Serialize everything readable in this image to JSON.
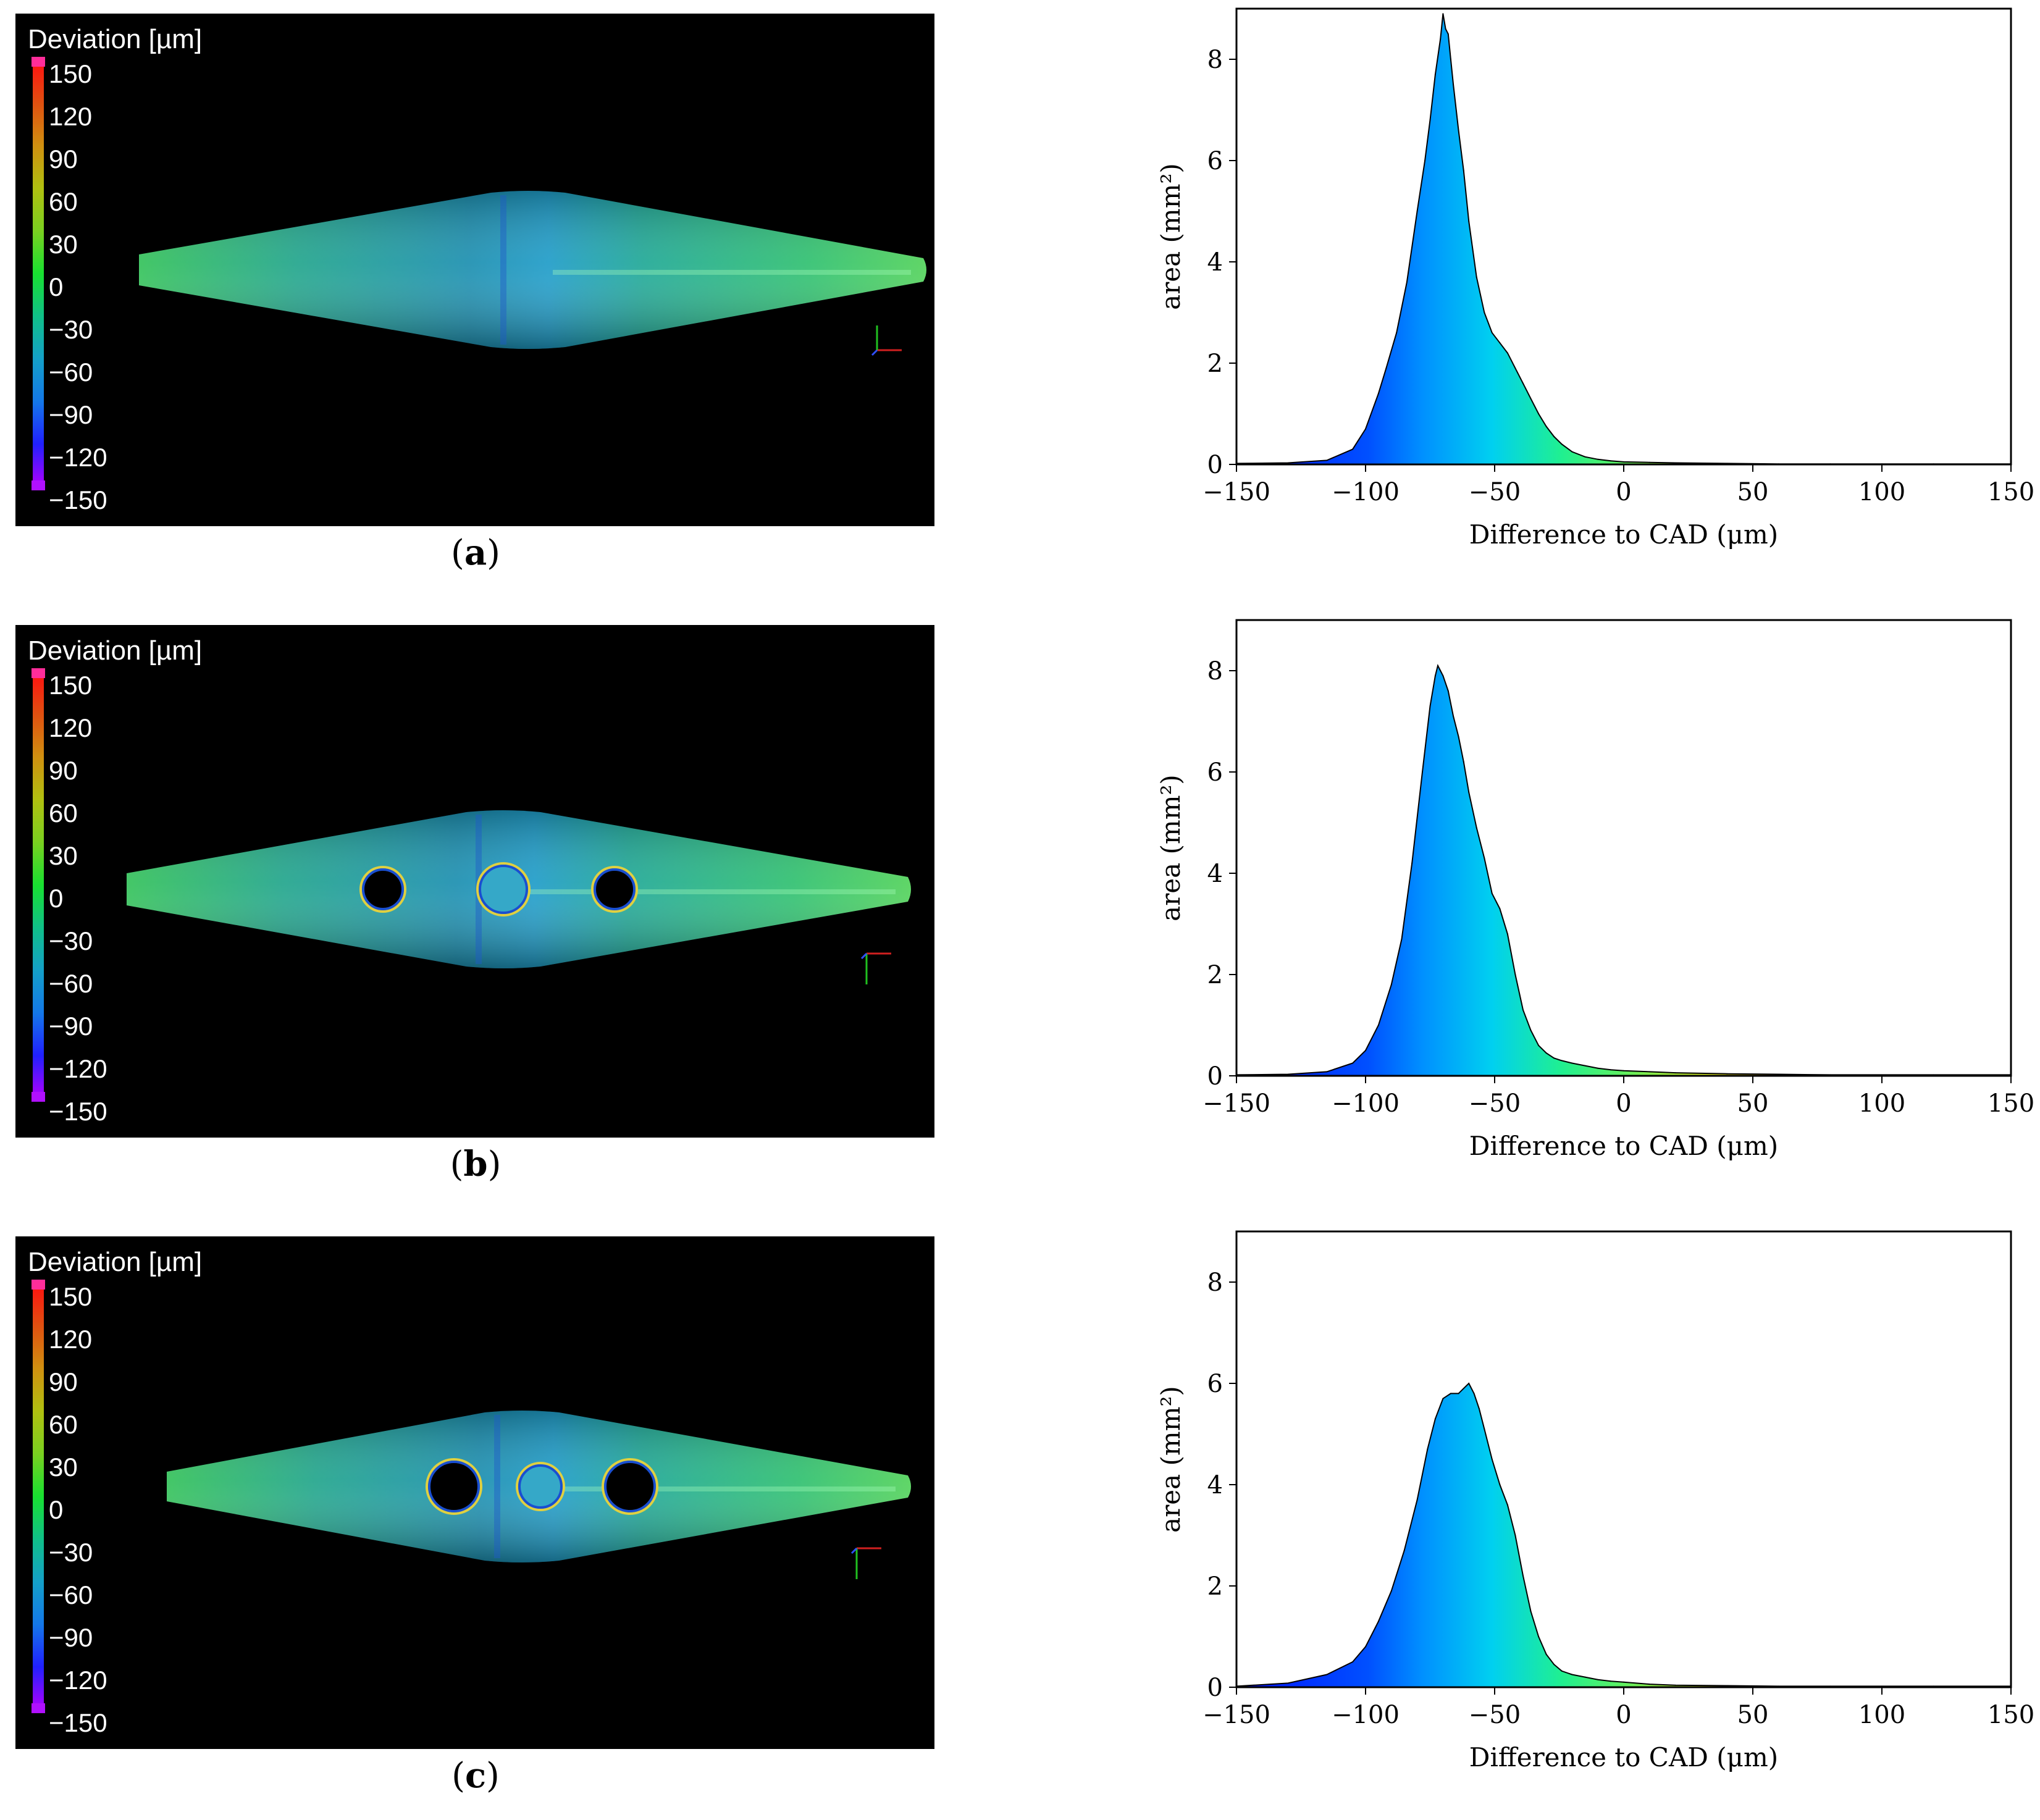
{
  "panels": [
    {
      "label": "a",
      "scan": {
        "legend_title": "Deviation [µm]",
        "legend_ticks": [
          "150",
          "120",
          "90",
          "60",
          "30",
          "0",
          "−30",
          "−60",
          "−90",
          "−120",
          "−150"
        ],
        "holes": 0
      },
      "chart_data": {
        "type": "area",
        "xlabel": "Difference to CAD (μm)",
        "ylabel": "area (mm²)",
        "xlim": [
          -150,
          150
        ],
        "ylim": [
          0,
          9
        ],
        "xticks": [
          "−150",
          "−100",
          "−50",
          "0",
          "50",
          "100",
          "150"
        ],
        "yticks": [
          "0",
          "2",
          "4",
          "6",
          "8"
        ],
        "x": [
          -150,
          -130,
          -115,
          -105,
          -100,
          -95,
          -92,
          -88,
          -84,
          -80,
          -77,
          -75,
          -73,
          -71,
          -70,
          -69,
          -68,
          -67,
          -66,
          -64,
          -62,
          -60,
          -57,
          -54,
          -51,
          -48,
          -45,
          -42,
          -39,
          -36,
          -33,
          -30,
          -27,
          -24,
          -20,
          -15,
          -10,
          -5,
          0,
          10,
          20,
          40,
          60,
          80,
          100,
          120,
          150
        ],
        "y": [
          0.02,
          0.03,
          0.08,
          0.3,
          0.7,
          1.4,
          1.9,
          2.6,
          3.6,
          5.0,
          6.0,
          6.8,
          7.7,
          8.4,
          8.9,
          8.6,
          8.5,
          8.0,
          7.5,
          6.6,
          5.8,
          4.8,
          3.7,
          3.0,
          2.6,
          2.4,
          2.2,
          1.9,
          1.6,
          1.3,
          1.0,
          0.75,
          0.55,
          0.4,
          0.25,
          0.15,
          0.1,
          0.07,
          0.05,
          0.04,
          0.03,
          0.02,
          0.01,
          0.01,
          0.01,
          0.01,
          0.01
        ]
      }
    },
    {
      "label": "b",
      "scan": {
        "legend_title": "Deviation [µm]",
        "legend_ticks": [
          "150",
          "120",
          "90",
          "60",
          "30",
          "0",
          "−30",
          "−60",
          "−90",
          "−120",
          "−150"
        ],
        "holes": 3
      },
      "chart_data": {
        "type": "area",
        "xlabel": "Difference to CAD (μm)",
        "ylabel": "area (mm²)",
        "xlim": [
          -150,
          150
        ],
        "ylim": [
          0,
          9
        ],
        "xticks": [
          "−150",
          "−100",
          "−50",
          "0",
          "50",
          "100",
          "150"
        ],
        "yticks": [
          "0",
          "2",
          "4",
          "6",
          "8"
        ],
        "x": [
          -150,
          -130,
          -115,
          -105,
          -100,
          -95,
          -90,
          -86,
          -82,
          -78,
          -75,
          -73,
          -72,
          -71,
          -70,
          -68,
          -66,
          -64,
          -62,
          -60,
          -57,
          -54,
          -51,
          -48,
          -45,
          -42,
          -39,
          -36,
          -33,
          -30,
          -27,
          -24,
          -20,
          -15,
          -10,
          -5,
          0,
          10,
          20,
          40,
          60,
          80,
          100,
          120,
          150
        ],
        "y": [
          0.02,
          0.03,
          0.08,
          0.25,
          0.5,
          1.0,
          1.8,
          2.7,
          4.2,
          6.0,
          7.3,
          7.9,
          8.1,
          8.0,
          7.9,
          7.6,
          7.1,
          6.7,
          6.2,
          5.6,
          4.9,
          4.3,
          3.6,
          3.3,
          2.8,
          2.0,
          1.3,
          0.9,
          0.6,
          0.45,
          0.35,
          0.3,
          0.25,
          0.2,
          0.15,
          0.12,
          0.1,
          0.08,
          0.06,
          0.04,
          0.03,
          0.02,
          0.02,
          0.02,
          0.02
        ]
      }
    },
    {
      "label": "c",
      "scan": {
        "legend_title": "Deviation [µm]",
        "legend_ticks": [
          "150",
          "120",
          "90",
          "60",
          "30",
          "0",
          "−30",
          "−60",
          "−90",
          "−120",
          "−150"
        ],
        "holes": 3
      },
      "chart_data": {
        "type": "area",
        "xlabel": "Difference to CAD (μm)",
        "ylabel": "area (mm²)",
        "xlim": [
          -150,
          150
        ],
        "ylim": [
          0,
          9
        ],
        "xticks": [
          "−150",
          "−100",
          "−50",
          "0",
          "50",
          "100",
          "150"
        ],
        "yticks": [
          "0",
          "2",
          "4",
          "6",
          "8"
        ],
        "x": [
          -150,
          -130,
          -115,
          -105,
          -100,
          -95,
          -90,
          -85,
          -80,
          -76,
          -73,
          -70,
          -67,
          -64,
          -62,
          -60,
          -58,
          -56,
          -54,
          -51,
          -48,
          -45,
          -42,
          -39,
          -36,
          -33,
          -30,
          -27,
          -24,
          -20,
          -15,
          -10,
          -5,
          0,
          10,
          20,
          40,
          60,
          80,
          100,
          120,
          150
        ],
        "y": [
          0.02,
          0.08,
          0.25,
          0.5,
          0.8,
          1.3,
          1.9,
          2.7,
          3.7,
          4.7,
          5.3,
          5.7,
          5.8,
          5.8,
          5.9,
          6.0,
          5.8,
          5.5,
          5.1,
          4.5,
          4.0,
          3.6,
          3.0,
          2.2,
          1.5,
          1.0,
          0.65,
          0.45,
          0.32,
          0.25,
          0.2,
          0.15,
          0.12,
          0.1,
          0.06,
          0.04,
          0.03,
          0.02,
          0.02,
          0.02,
          0.02,
          0.02
        ]
      }
    }
  ]
}
